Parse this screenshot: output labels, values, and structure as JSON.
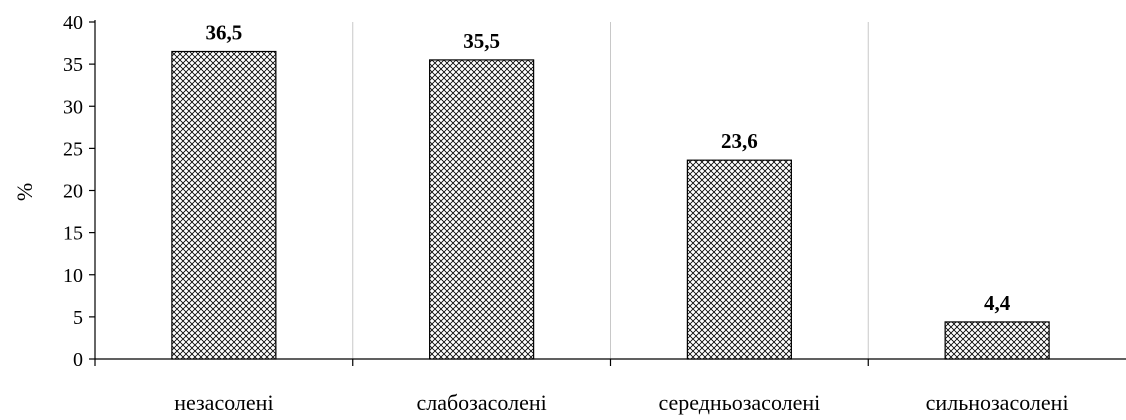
{
  "chart_data": {
    "type": "bar",
    "categories": [
      "незасолені",
      "слабозасолені",
      "середньозасолені",
      "сильнозасолені"
    ],
    "value_labels": [
      "36,5",
      "35,5",
      "23,6",
      "4,4"
    ],
    "values": [
      36.5,
      35.5,
      23.6,
      4.4
    ],
    "ylabel": "%",
    "xlabel": "",
    "title": "",
    "ylim": [
      0,
      40
    ],
    "yticks": [
      0,
      5,
      10,
      15,
      20,
      25,
      30,
      35,
      40
    ],
    "ytick_labels": [
      "0",
      "5",
      "10",
      "15",
      "20",
      "25",
      "30",
      "35",
      "40"
    ],
    "grid": "vertical-separators",
    "bar_pattern": "crosshatch"
  }
}
